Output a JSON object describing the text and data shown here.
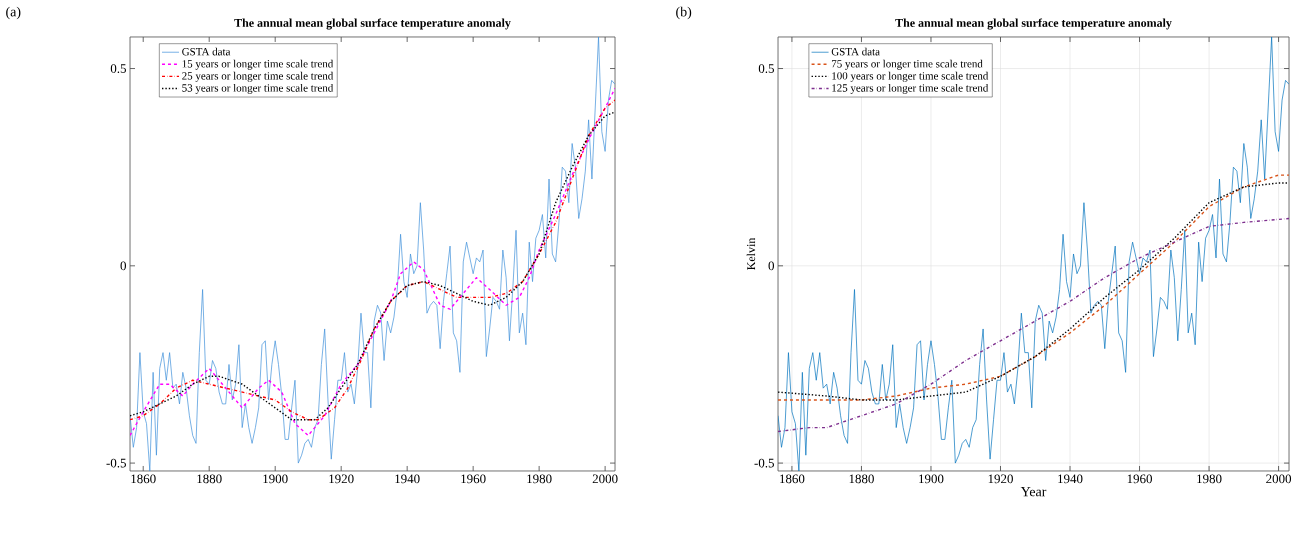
{
  "chart_data": [
    {
      "type": "line",
      "title": "The annual mean global surface temperature anomaly",
      "annotations": [
        "(a)"
      ],
      "x": [
        1856,
        1857,
        1858,
        1859,
        1860,
        1861,
        1862,
        1863,
        1864,
        1865,
        1866,
        1867,
        1868,
        1869,
        1870,
        1871,
        1872,
        1873,
        1874,
        1875,
        1876,
        1877,
        1878,
        1879,
        1880,
        1881,
        1882,
        1883,
        1884,
        1885,
        1886,
        1887,
        1888,
        1889,
        1890,
        1891,
        1892,
        1893,
        1894,
        1895,
        1896,
        1897,
        1898,
        1899,
        1900,
        1901,
        1902,
        1903,
        1904,
        1905,
        1906,
        1907,
        1908,
        1909,
        1910,
        1911,
        1912,
        1913,
        1914,
        1915,
        1916,
        1917,
        1918,
        1919,
        1920,
        1921,
        1922,
        1923,
        1924,
        1925,
        1926,
        1927,
        1928,
        1929,
        1930,
        1931,
        1932,
        1933,
        1934,
        1935,
        1936,
        1937,
        1938,
        1939,
        1940,
        1941,
        1942,
        1943,
        1944,
        1945,
        1946,
        1947,
        1948,
        1949,
        1950,
        1951,
        1952,
        1953,
        1954,
        1955,
        1956,
        1957,
        1958,
        1959,
        1960,
        1961,
        1962,
        1963,
        1964,
        1965,
        1966,
        1967,
        1968,
        1969,
        1970,
        1971,
        1972,
        1973,
        1974,
        1975,
        1976,
        1977,
        1978,
        1979,
        1980,
        1981,
        1982,
        1983,
        1984,
        1985,
        1986,
        1987,
        1988,
        1989,
        1990,
        1991,
        1992,
        1993,
        1994,
        1995,
        1996,
        1997,
        1998,
        1999,
        2000,
        2001,
        2002,
        2003
      ],
      "xlim": [
        1856,
        2003
      ],
      "ylim": [
        -0.52,
        0.58
      ],
      "xticks": [
        1860,
        1880,
        1900,
        1920,
        1940,
        1960,
        1980,
        2000
      ],
      "yticks": [
        -0.5,
        0,
        0.5
      ],
      "legend": "top left",
      "series": [
        {
          "name": "GSTA data",
          "color": "#3d8fd9",
          "line_style": "solid",
          "values": [
            -0.38,
            -0.46,
            -0.41,
            -0.22,
            -0.37,
            -0.4,
            -0.52,
            -0.27,
            -0.48,
            -0.26,
            -0.22,
            -0.29,
            -0.22,
            -0.31,
            -0.3,
            -0.35,
            -0.27,
            -0.31,
            -0.38,
            -0.43,
            -0.45,
            -0.22,
            -0.06,
            -0.29,
            -0.3,
            -0.24,
            -0.26,
            -0.32,
            -0.35,
            -0.35,
            -0.25,
            -0.34,
            -0.3,
            -0.2,
            -0.41,
            -0.35,
            -0.41,
            -0.45,
            -0.41,
            -0.36,
            -0.2,
            -0.19,
            -0.34,
            -0.25,
            -0.19,
            -0.25,
            -0.33,
            -0.44,
            -0.44,
            -0.36,
            -0.29,
            -0.5,
            -0.48,
            -0.45,
            -0.44,
            -0.46,
            -0.41,
            -0.39,
            -0.25,
            -0.16,
            -0.34,
            -0.49,
            -0.39,
            -0.29,
            -0.29,
            -0.22,
            -0.32,
            -0.3,
            -0.35,
            -0.26,
            -0.12,
            -0.22,
            -0.22,
            -0.36,
            -0.14,
            -0.1,
            -0.12,
            -0.24,
            -0.14,
            -0.17,
            -0.13,
            -0.06,
            0.08,
            -0.04,
            -0.08,
            0.03,
            -0.02,
            0.0,
            0.16,
            0.04,
            -0.12,
            -0.1,
            -0.09,
            -0.1,
            -0.21,
            -0.09,
            -0.02,
            0.05,
            -0.17,
            -0.19,
            -0.27,
            0.01,
            0.06,
            0.02,
            -0.02,
            0.02,
            0.01,
            0.04,
            -0.23,
            -0.16,
            -0.08,
            -0.09,
            -0.11,
            0.04,
            -0.03,
            -0.19,
            -0.06,
            0.09,
            -0.17,
            -0.12,
            -0.2,
            0.06,
            -0.04,
            0.07,
            0.09,
            0.13,
            0.02,
            0.22,
            0.03,
            0.01,
            0.11,
            0.25,
            0.24,
            0.16,
            0.31,
            0.25,
            0.12,
            0.17,
            0.24,
            0.37,
            0.22,
            0.4,
            0.58,
            0.34,
            0.29,
            0.42,
            0.47,
            0.46
          ]
        },
        {
          "name": "15 years or longer time scale trend",
          "color": "#ff00ff",
          "line_style": "dashed",
          "x": [
            1856,
            1860,
            1865,
            1868,
            1872,
            1875,
            1880,
            1885,
            1890,
            1895,
            1898,
            1902,
            1906,
            1910,
            1915,
            1920,
            1925,
            1930,
            1935,
            1938,
            1942,
            1945,
            1950,
            1953,
            1957,
            1961,
            1965,
            1970,
            1974,
            1977,
            1980,
            1985,
            1990,
            1995,
            2000,
            2003
          ],
          "values": [
            -0.43,
            -0.37,
            -0.3,
            -0.3,
            -0.33,
            -0.3,
            -0.26,
            -0.31,
            -0.36,
            -0.31,
            -0.29,
            -0.32,
            -0.4,
            -0.43,
            -0.38,
            -0.3,
            -0.25,
            -0.17,
            -0.09,
            -0.02,
            0.01,
            -0.01,
            -0.1,
            -0.11,
            -0.07,
            -0.03,
            -0.06,
            -0.1,
            -0.08,
            -0.03,
            0.04,
            0.13,
            0.23,
            0.32,
            0.4,
            0.45
          ]
        },
        {
          "name": "25 years or longer time scale trend",
          "color": "#ff0000",
          "line_style": "dashdot",
          "x": [
            1856,
            1860,
            1865,
            1870,
            1875,
            1880,
            1885,
            1890,
            1895,
            1900,
            1905,
            1910,
            1913,
            1918,
            1922,
            1926,
            1930,
            1935,
            1940,
            1945,
            1950,
            1955,
            1960,
            1965,
            1970,
            1975,
            1980,
            1985,
            1990,
            1995,
            2000,
            2003
          ],
          "values": [
            -0.39,
            -0.38,
            -0.35,
            -0.31,
            -0.29,
            -0.3,
            -0.31,
            -0.32,
            -0.33,
            -0.34,
            -0.37,
            -0.39,
            -0.39,
            -0.36,
            -0.31,
            -0.24,
            -0.16,
            -0.09,
            -0.05,
            -0.04,
            -0.06,
            -0.08,
            -0.08,
            -0.08,
            -0.07,
            -0.04,
            0.03,
            0.11,
            0.22,
            0.33,
            0.4,
            0.42
          ]
        },
        {
          "name": "53 years or longer time scale trend",
          "color": "#000000",
          "line_style": "dotted",
          "x": [
            1856,
            1860,
            1865,
            1870,
            1875,
            1880,
            1883,
            1890,
            1895,
            1900,
            1905,
            1908,
            1912,
            1916,
            1920,
            1925,
            1930,
            1935,
            1940,
            1945,
            1950,
            1955,
            1960,
            1965,
            1970,
            1975,
            1980,
            1985,
            1990,
            1995,
            2000,
            2003
          ],
          "values": [
            -0.38,
            -0.37,
            -0.35,
            -0.33,
            -0.3,
            -0.28,
            -0.28,
            -0.3,
            -0.33,
            -0.36,
            -0.39,
            -0.39,
            -0.39,
            -0.36,
            -0.31,
            -0.25,
            -0.16,
            -0.09,
            -0.05,
            -0.04,
            -0.05,
            -0.07,
            -0.09,
            -0.1,
            -0.08,
            -0.04,
            0.03,
            0.16,
            0.25,
            0.33,
            0.38,
            0.39
          ]
        }
      ]
    },
    {
      "type": "line",
      "title": "The annual mean global surface temperature anomaly",
      "xlabel": "Year",
      "ylabel": "Kelvin",
      "annotations": [
        "(b)"
      ],
      "x": [
        1856,
        1857,
        1858,
        1859,
        1860,
        1861,
        1862,
        1863,
        1864,
        1865,
        1866,
        1867,
        1868,
        1869,
        1870,
        1871,
        1872,
        1873,
        1874,
        1875,
        1876,
        1877,
        1878,
        1879,
        1880,
        1881,
        1882,
        1883,
        1884,
        1885,
        1886,
        1887,
        1888,
        1889,
        1890,
        1891,
        1892,
        1893,
        1894,
        1895,
        1896,
        1897,
        1898,
        1899,
        1900,
        1901,
        1902,
        1903,
        1904,
        1905,
        1906,
        1907,
        1908,
        1909,
        1910,
        1911,
        1912,
        1913,
        1914,
        1915,
        1916,
        1917,
        1918,
        1919,
        1920,
        1921,
        1922,
        1923,
        1924,
        1925,
        1926,
        1927,
        1928,
        1929,
        1930,
        1931,
        1932,
        1933,
        1934,
        1935,
        1936,
        1937,
        1938,
        1939,
        1940,
        1941,
        1942,
        1943,
        1944,
        1945,
        1946,
        1947,
        1948,
        1949,
        1950,
        1951,
        1952,
        1953,
        1954,
        1955,
        1956,
        1957,
        1958,
        1959,
        1960,
        1961,
        1962,
        1963,
        1964,
        1965,
        1966,
        1967,
        1968,
        1969,
        1970,
        1971,
        1972,
        1973,
        1974,
        1975,
        1976,
        1977,
        1978,
        1979,
        1980,
        1981,
        1982,
        1983,
        1984,
        1985,
        1986,
        1987,
        1988,
        1989,
        1990,
        1991,
        1992,
        1993,
        1994,
        1995,
        1996,
        1997,
        1998,
        1999,
        2000,
        2001,
        2002,
        2003
      ],
      "xlim": [
        1856,
        2003
      ],
      "ylim": [
        -0.52,
        0.58
      ],
      "xticks": [
        1860,
        1880,
        1900,
        1920,
        1940,
        1960,
        1980,
        2000
      ],
      "yticks": [
        -0.5,
        0,
        0.5
      ],
      "grid": true,
      "legend": "top left",
      "series": [
        {
          "name": "GSTA data",
          "color": "#0072bd",
          "line_style": "solid",
          "values": [
            -0.38,
            -0.46,
            -0.41,
            -0.22,
            -0.37,
            -0.4,
            -0.52,
            -0.27,
            -0.48,
            -0.26,
            -0.22,
            -0.29,
            -0.22,
            -0.31,
            -0.3,
            -0.35,
            -0.27,
            -0.31,
            -0.38,
            -0.43,
            -0.45,
            -0.22,
            -0.06,
            -0.29,
            -0.3,
            -0.24,
            -0.26,
            -0.32,
            -0.35,
            -0.35,
            -0.25,
            -0.34,
            -0.3,
            -0.2,
            -0.41,
            -0.35,
            -0.41,
            -0.45,
            -0.41,
            -0.36,
            -0.2,
            -0.19,
            -0.34,
            -0.25,
            -0.19,
            -0.25,
            -0.33,
            -0.44,
            -0.44,
            -0.36,
            -0.29,
            -0.5,
            -0.48,
            -0.45,
            -0.44,
            -0.46,
            -0.41,
            -0.39,
            -0.25,
            -0.16,
            -0.34,
            -0.49,
            -0.39,
            -0.29,
            -0.29,
            -0.22,
            -0.32,
            -0.3,
            -0.35,
            -0.26,
            -0.12,
            -0.22,
            -0.22,
            -0.36,
            -0.14,
            -0.1,
            -0.12,
            -0.24,
            -0.14,
            -0.17,
            -0.13,
            -0.06,
            0.08,
            -0.04,
            -0.08,
            0.03,
            -0.02,
            0.0,
            0.16,
            0.04,
            -0.12,
            -0.1,
            -0.09,
            -0.1,
            -0.21,
            -0.09,
            -0.02,
            0.05,
            -0.17,
            -0.19,
            -0.27,
            0.01,
            0.06,
            0.02,
            -0.02,
            0.02,
            0.01,
            0.04,
            -0.23,
            -0.16,
            -0.08,
            -0.09,
            -0.11,
            0.04,
            -0.03,
            -0.19,
            -0.06,
            0.09,
            -0.17,
            -0.12,
            -0.2,
            0.06,
            -0.04,
            0.07,
            0.09,
            0.13,
            0.02,
            0.22,
            0.03,
            0.01,
            0.11,
            0.25,
            0.24,
            0.16,
            0.31,
            0.25,
            0.12,
            0.17,
            0.24,
            0.37,
            0.22,
            0.4,
            0.58,
            0.34,
            0.29,
            0.42,
            0.47,
            0.46
          ]
        },
        {
          "name": "75 years or longer time scale trend",
          "color": "#d95319",
          "line_style": "dashed",
          "x": [
            1856,
            1870,
            1880,
            1890,
            1900,
            1910,
            1920,
            1930,
            1940,
            1950,
            1960,
            1970,
            1980,
            1990,
            2000,
            2003
          ],
          "values": [
            -0.34,
            -0.34,
            -0.34,
            -0.33,
            -0.31,
            -0.3,
            -0.28,
            -0.23,
            -0.17,
            -0.1,
            -0.02,
            0.06,
            0.15,
            0.2,
            0.23,
            0.23
          ]
        },
        {
          "name": "100 years or longer time scale trend",
          "color": "#000000",
          "line_style": "dotted",
          "x": [
            1856,
            1870,
            1880,
            1890,
            1900,
            1910,
            1920,
            1930,
            1940,
            1950,
            1960,
            1970,
            1980,
            1990,
            2000,
            2003
          ],
          "values": [
            -0.32,
            -0.33,
            -0.34,
            -0.34,
            -0.33,
            -0.32,
            -0.28,
            -0.23,
            -0.16,
            -0.08,
            -0.01,
            0.07,
            0.16,
            0.2,
            0.21,
            0.21
          ]
        },
        {
          "name": "125 years or longer time scale trend",
          "color": "#7e2f8e",
          "line_style": "dashdot",
          "x": [
            1856,
            1865,
            1870,
            1880,
            1890,
            1900,
            1910,
            1920,
            1930,
            1940,
            1950,
            1960,
            1970,
            1980,
            1990,
            2003
          ],
          "values": [
            -0.42,
            -0.41,
            -0.41,
            -0.38,
            -0.35,
            -0.3,
            -0.24,
            -0.19,
            -0.14,
            -0.09,
            -0.03,
            0.02,
            0.06,
            0.1,
            0.11,
            0.12
          ]
        }
      ]
    }
  ]
}
